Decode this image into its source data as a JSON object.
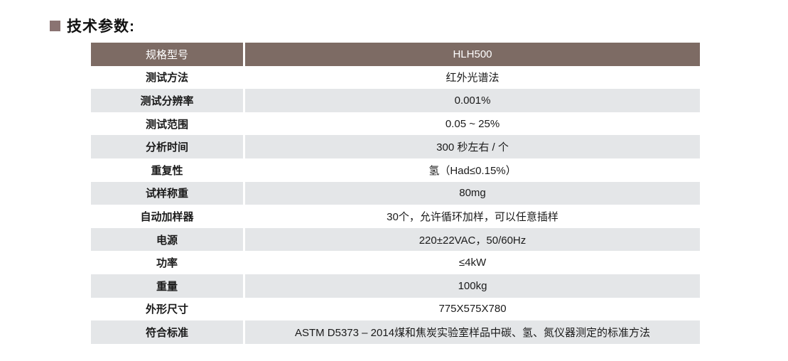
{
  "page": {
    "title": "技术参数:",
    "colors": {
      "bullet": "#8a7372",
      "header_bg": "#7d6b64",
      "alt_row_bg": "#e4e6e8",
      "header_text": "#ffffff",
      "body_text": "#1a1a1a"
    }
  },
  "table": {
    "header": {
      "col1": "规格型号",
      "col2": "HLH500"
    },
    "rows": [
      {
        "label": "测试方法",
        "value": "红外光谱法"
      },
      {
        "label": "测试分辨率",
        "value": "0.001%"
      },
      {
        "label": "测试范围",
        "value": "0.05 ~ 25%"
      },
      {
        "label": "分析时间",
        "value": "300 秒左右 / 个"
      },
      {
        "label": "重复性",
        "value": "氢（Had≤0.15%）"
      },
      {
        "label": "试样称重",
        "value": "80mg"
      },
      {
        "label": "自动加样器",
        "value": "30个，允许循环加样，可以任意插样"
      },
      {
        "label": "电源",
        "value": "220±22VAC，50/60Hz"
      },
      {
        "label": "功率",
        "value": "≤4kW"
      },
      {
        "label": "重量",
        "value": "100kg"
      },
      {
        "label": "外形尺寸",
        "value": "775X575X780"
      },
      {
        "label": "符合标准",
        "value": "ASTM D5373 – 2014煤和焦炭实验室样品中碳、氢、氮仪器测定的标准方法"
      }
    ]
  }
}
